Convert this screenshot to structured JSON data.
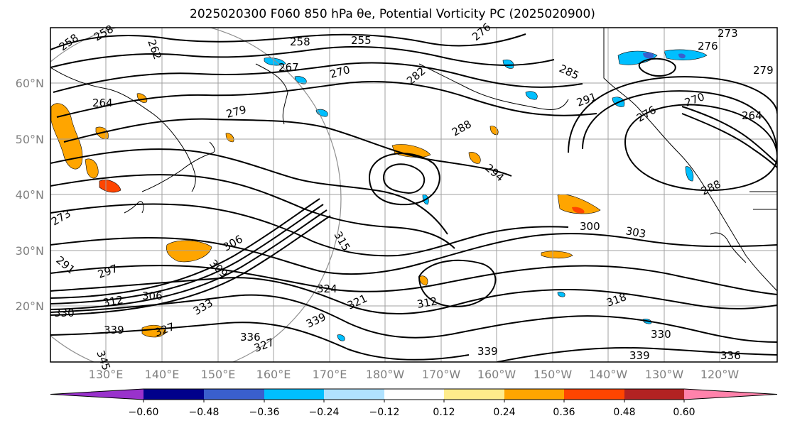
{
  "title": "2025020300 F060 850 hPa θe, Potential Vorticity PC (2025020900)",
  "map": {
    "lat_labels": [
      "60°N",
      "50°N",
      "40°N",
      "30°N",
      "20°N"
    ],
    "lon_labels": [
      "130°E",
      "140°E",
      "150°E",
      "160°E",
      "170°E",
      "180°W",
      "170°W",
      "160°W",
      "150°W",
      "140°W",
      "130°W",
      "120°W"
    ],
    "contour_labels": [
      "258",
      "258",
      "262",
      "258",
      "255",
      "276",
      "273",
      "276",
      "279",
      "264",
      "267",
      "270",
      "282",
      "285",
      "291",
      "279",
      "288",
      "294",
      "264",
      "288",
      "273",
      "300",
      "303",
      "291",
      "297",
      "306",
      "309",
      "315",
      "306",
      "312",
      "324",
      "321",
      "330",
      "333",
      "318",
      "330",
      "339",
      "327",
      "339",
      "336",
      "345",
      "327",
      "339",
      "339",
      "336",
      "312",
      "276",
      "270"
    ]
  },
  "colorbar": {
    "colors": [
      "#9932cc",
      "#00008b",
      "#3a5fcd",
      "#00bfff",
      "#b0e2ff",
      "#ffffff",
      "#ffec8b",
      "#ffa500",
      "#ff4500",
      "#b22222",
      "#ff82ab"
    ],
    "tick_labels": [
      "-0.60",
      "-0.48",
      "-0.36",
      "-0.24",
      "-0.12",
      "0.12",
      "0.24",
      "0.36",
      "0.48",
      "0.60"
    ]
  }
}
